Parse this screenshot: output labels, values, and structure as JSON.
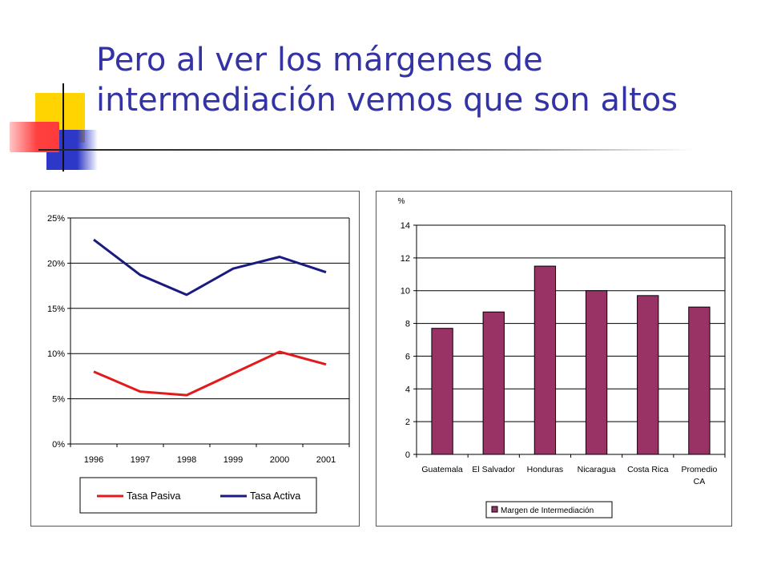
{
  "slide": {
    "title_lines": [
      "Pero al ver los márgenes de",
      "intermediación vemos que son altos"
    ]
  },
  "colors": {
    "title": "#3333a6",
    "tasa_pasiva": "#e31a1c",
    "tasa_activa": "#1a1a80",
    "bar_fill": "#993366",
    "grid": "#000000"
  },
  "chart_data": [
    {
      "type": "line",
      "title": "",
      "xlabel": "",
      "ylabel": "",
      "categories": [
        "1996",
        "1997",
        "1998",
        "1999",
        "2000",
        "2001"
      ],
      "ylim": [
        0,
        0.25
      ],
      "yticks": [
        0,
        0.05,
        0.1,
        0.15,
        0.2,
        0.25
      ],
      "ytick_labels": [
        "0%",
        "5%",
        "10%",
        "15%",
        "20%",
        "25%"
      ],
      "grid": true,
      "legend_position": "bottom",
      "series": [
        {
          "name": "Tasa Pasiva",
          "values": [
            0.08,
            0.058,
            0.054,
            0.078,
            0.102,
            0.088
          ],
          "color": "#e31a1c"
        },
        {
          "name": "Tasa Activa",
          "values": [
            0.226,
            0.187,
            0.165,
            0.194,
            0.207,
            0.19
          ],
          "color": "#1a1a80"
        }
      ]
    },
    {
      "type": "bar",
      "title": "",
      "xlabel": "",
      "ylabel": "%",
      "categories": [
        "Guatemala",
        "El Salvador",
        "Honduras",
        "Nicaragua",
        "Costa Rica",
        "Promedio CA"
      ],
      "category_lines": [
        [
          "Guatemala"
        ],
        [
          "El Salvador"
        ],
        [
          "Honduras"
        ],
        [
          "Nicaragua"
        ],
        [
          "Costa Rica"
        ],
        [
          "Promedio",
          "CA"
        ]
      ],
      "ylim": [
        0,
        14
      ],
      "yticks": [
        0,
        2,
        4,
        6,
        8,
        10,
        12,
        14
      ],
      "ytick_labels": [
        "0",
        "2",
        "4",
        "6",
        "8",
        "10",
        "12",
        "14"
      ],
      "grid": true,
      "legend_position": "bottom",
      "series": [
        {
          "name": "Margen de Intermediación",
          "values": [
            7.7,
            8.7,
            11.5,
            10.0,
            9.7,
            9.0
          ],
          "color": "#993366"
        }
      ]
    }
  ]
}
